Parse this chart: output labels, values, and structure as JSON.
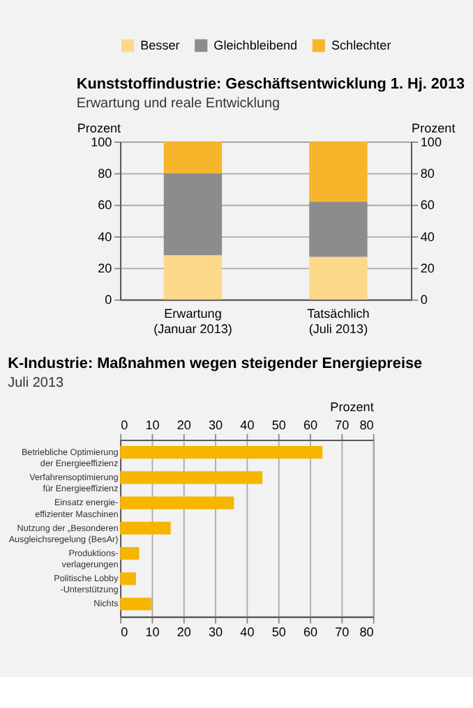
{
  "chart_data": [
    {
      "type": "bar",
      "title": "Kunststoffindustrie: Geschäftsentwicklung 1. Hj. 2013",
      "subtitle": "Erwartung und reale Entwicklung",
      "categories": [
        "Erwartung\n(Januar 2013)",
        "Tatsächlich\n(Juli 2013)"
      ],
      "stacked": true,
      "series": [
        {
          "name": "Besser",
          "color": "#fcd88a",
          "values": [
            28,
            27
          ]
        },
        {
          "name": "Gleichbleibend",
          "color": "#8c8c8c",
          "values": [
            52,
            35
          ]
        },
        {
          "name": "Schlechter",
          "color": "#f7b52c",
          "values": [
            20,
            38
          ]
        }
      ],
      "ylabel": "Prozent",
      "y2label": "Prozent",
      "ylim": [
        0,
        100
      ],
      "yticks": [
        0,
        20,
        40,
        60,
        80,
        100
      ],
      "y2lim": [
        0,
        100
      ],
      "y2ticks": [
        0,
        20,
        40,
        60,
        80,
        100
      ],
      "grid": "y",
      "legend": "top"
    },
    {
      "type": "bar",
      "orientation": "horizontal",
      "title": "K-Industrie: Maßnahmen wegen steigender Energiepreise",
      "subtitle": "Juli 2013",
      "categories": [
        "Betriebliche Optimierung\nder Energieeffizienz",
        "Verfahrensoptimierung\nfür Energieeffizienz",
        "Einsatz energie-\neffizienter Maschinen",
        "Nutzung der „Besonderen\nAusgleichsregelung (BesAr)",
        "Produktions-\nverlagerungen",
        "Politische Lobby\n-Unterstützung",
        "Nichts"
      ],
      "values": [
        64,
        45,
        36,
        16,
        6,
        5,
        10
      ],
      "color": "#f7b500",
      "xlim": [
        0,
        80
      ],
      "xticks": [
        0,
        10,
        20,
        30,
        40,
        50,
        60,
        70,
        80
      ],
      "x2lim": [
        0,
        80
      ],
      "x2ticks": [
        0,
        10,
        20,
        30,
        40,
        50,
        60,
        70,
        80
      ],
      "x2label": "Prozent",
      "grid": "x"
    }
  ]
}
